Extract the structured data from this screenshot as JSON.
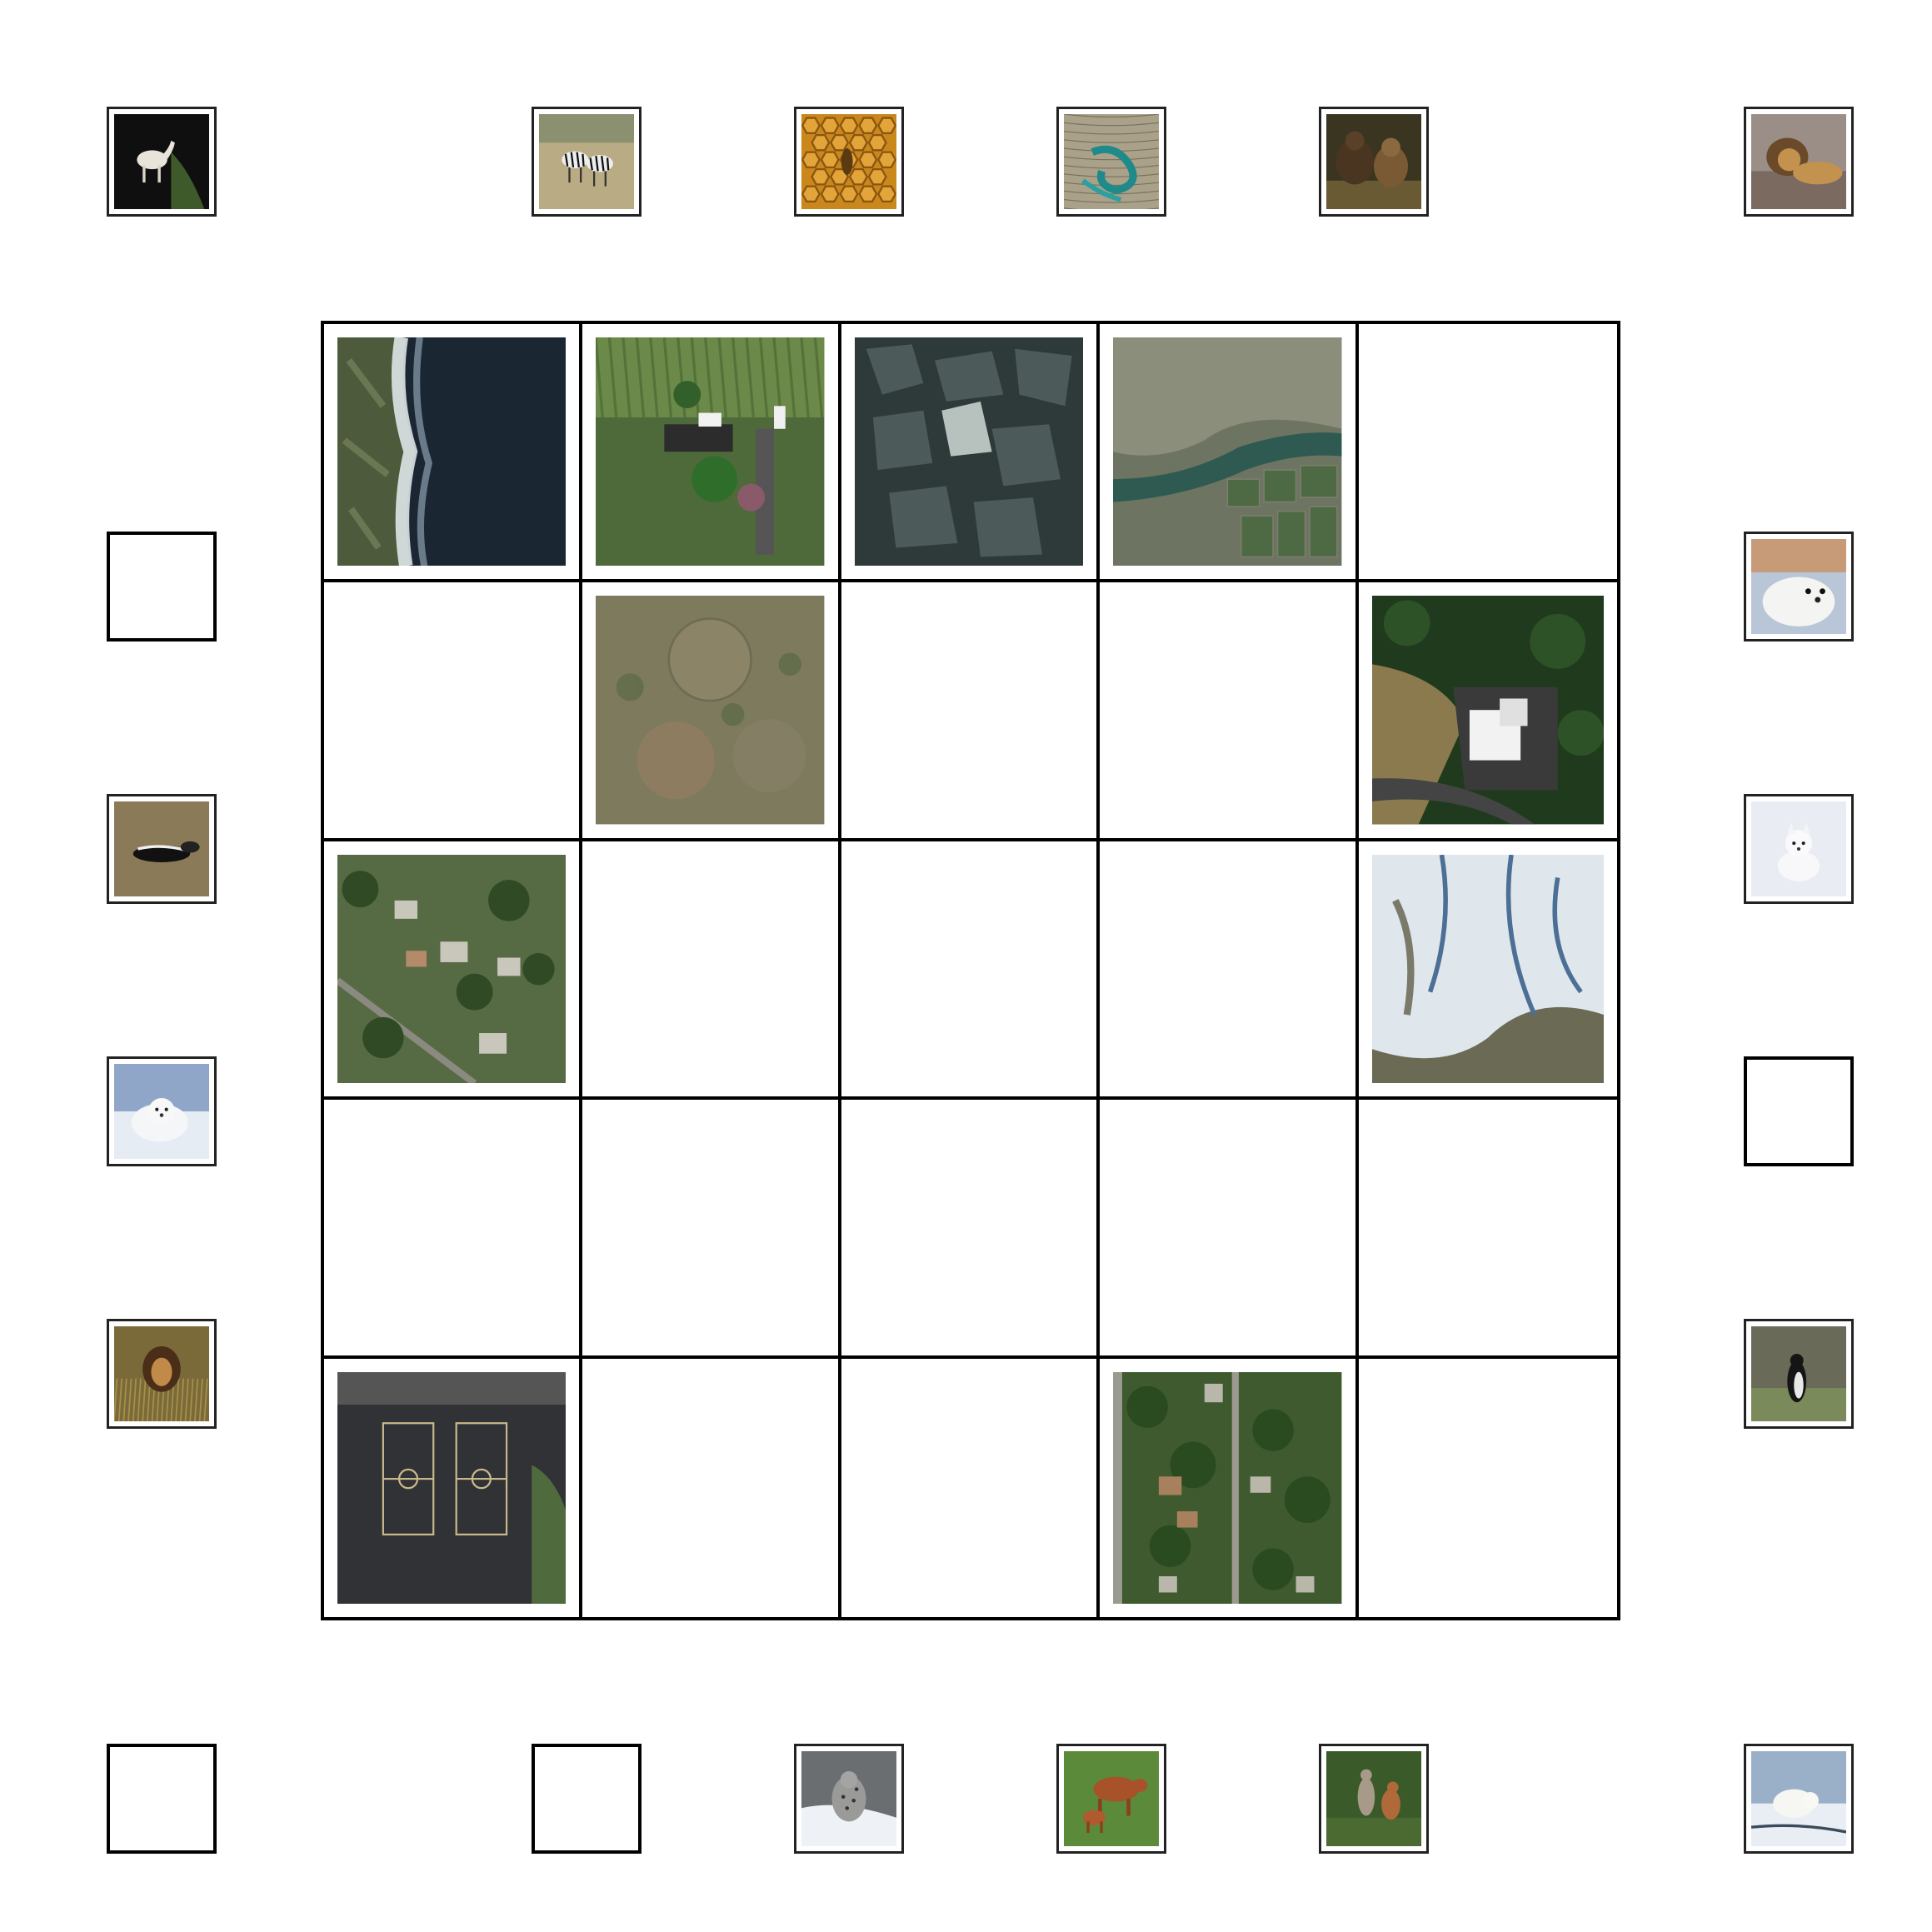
{
  "board": {
    "rows": 5,
    "cols": 5,
    "cells": [
      [
        {
          "tile": "coastline-waves"
        },
        {
          "tile": "farmhouse-yard"
        },
        {
          "tile": "sea-ice-floes"
        },
        {
          "tile": "river-valley-fields"
        },
        {
          "tile": null
        }
      ],
      [
        {
          "tile": null
        },
        {
          "tile": "center-pivot-fields"
        },
        {
          "tile": null
        },
        {
          "tile": null
        },
        {
          "tile": "forest-building-lot"
        }
      ],
      [
        {
          "tile": "suburban-houses-trees"
        },
        {
          "tile": null
        },
        {
          "tile": null
        },
        {
          "tile": null
        },
        {
          "tile": "snowy-mountains"
        }
      ],
      [
        {
          "tile": null
        },
        {
          "tile": null
        },
        {
          "tile": null
        },
        {
          "tile": null
        },
        {
          "tile": null
        }
      ],
      [
        {
          "tile": "basketball-courts"
        },
        {
          "tile": null
        },
        {
          "tile": null
        },
        {
          "tile": "residential-grid"
        },
        {
          "tile": null
        }
      ]
    ]
  },
  "slots": {
    "top": [
      {
        "tile": "white-horse-dark"
      },
      {
        "tile": "zebras-savanna"
      },
      {
        "tile": "honeycomb-bee"
      },
      {
        "tile": "fishing-net"
      },
      {
        "tile": "brown-bears"
      },
      {
        "tile": "lion-on-rock"
      }
    ],
    "left": [
      {
        "tile": null
      },
      {
        "tile": "skunk-grass"
      },
      {
        "tile": "arctic-fox-snow"
      },
      {
        "tile": "lion-tall-grass"
      }
    ],
    "right": [
      {
        "tile": "seal-pup"
      },
      {
        "tile": "arctic-fox-white"
      },
      {
        "tile": null
      },
      {
        "tile": "penguin-rocks"
      }
    ],
    "bottom": [
      {
        "tile": null
      },
      {
        "tile": null
      },
      {
        "tile": "snow-leopard"
      },
      {
        "tile": "cow-and-calf"
      },
      {
        "tile": "kangaroos"
      },
      {
        "tile": "polar-bear"
      }
    ]
  }
}
